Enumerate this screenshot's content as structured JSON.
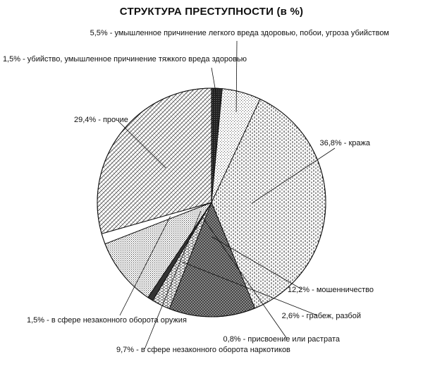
{
  "chart_data": {
    "type": "pie",
    "title": "СТРУКТУРА ПРЕСТУПНОСТИ  (в %)",
    "slices": [
      {
        "label": "1,5% - убийство, умышленное причинение тяжкого вреда здоровью",
        "value": 1.5,
        "pattern": "dark"
      },
      {
        "label": "5,5% - умышленное причинение легкого вреда здоровью, побои, угроза убийством",
        "value": 5.5,
        "pattern": "sparse-dots"
      },
      {
        "label": "36,8% - кража",
        "value": 36.8,
        "pattern": "dashes"
      },
      {
        "label": "12,2% - мошенничество",
        "value": 12.2,
        "pattern": "crosshatch"
      },
      {
        "label": "2,6% - грабеж, разбой",
        "value": 2.6,
        "pattern": "bricks"
      },
      {
        "label": "0,8% - присвоение или растрата",
        "value": 0.8,
        "pattern": "solid-dark"
      },
      {
        "label": "9,7% - в сфере незаконного оборота наркотиков",
        "value": 9.7,
        "pattern": "dense-dots"
      },
      {
        "label": "1,5% - в сфере незаконного оборота оружия",
        "value": 1.5,
        "pattern": "white"
      },
      {
        "label": "29,4% - прочие",
        "value": 29.4,
        "pattern": "diag-cross"
      }
    ]
  }
}
